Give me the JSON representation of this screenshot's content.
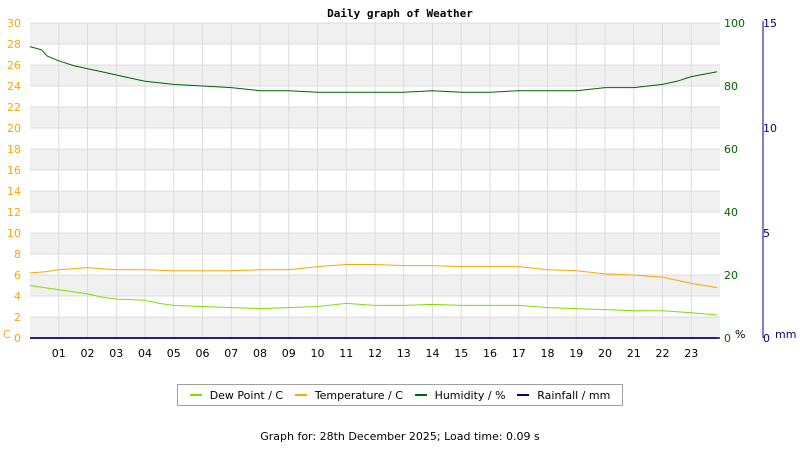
{
  "chart_data": {
    "type": "line",
    "title": "Daily graph of Weather",
    "x_tick_labels": [
      "01",
      "02",
      "03",
      "04",
      "05",
      "06",
      "07",
      "08",
      "09",
      "10",
      "11",
      "12",
      "13",
      "14",
      "15",
      "16",
      "17",
      "18",
      "19",
      "20",
      "21",
      "22",
      "23"
    ],
    "xlim": [
      0,
      24
    ],
    "axes": {
      "left": {
        "unit_label": "C",
        "ylim": [
          0,
          30
        ],
        "ticks": [
          0,
          2,
          4,
          6,
          8,
          10,
          12,
          14,
          16,
          18,
          20,
          22,
          24,
          26,
          28,
          30
        ],
        "color": "#ffa500"
      },
      "right1": {
        "unit_label": "%",
        "ylim": [
          0,
          100
        ],
        "ticks": [
          0,
          20,
          40,
          60,
          80,
          100
        ],
        "color": "#006400"
      },
      "right2": {
        "unit_label": "mm",
        "ylim": [
          0,
          15
        ],
        "ticks": [
          0,
          5,
          10,
          15
        ],
        "color": "#00008b"
      }
    },
    "grid": true,
    "legend_position": "bottom",
    "series": [
      {
        "name": "Dew Point / C",
        "axis": "left",
        "color": "#7fe000",
        "x": [
          0,
          0.5,
          1,
          1.5,
          2,
          2.5,
          3,
          4,
          4.5,
          5,
          6,
          7,
          8,
          9,
          10,
          11,
          12,
          13,
          14,
          15,
          16,
          17,
          18,
          19,
          20,
          21,
          22,
          23,
          23.9
        ],
        "y": [
          5.0,
          4.8,
          4.6,
          4.4,
          4.2,
          3.9,
          3.7,
          3.6,
          3.3,
          3.1,
          3.0,
          2.9,
          2.8,
          2.9,
          3.0,
          3.3,
          3.1,
          3.1,
          3.2,
          3.1,
          3.1,
          3.1,
          2.9,
          2.8,
          2.7,
          2.6,
          2.6,
          2.4,
          2.2
        ]
      },
      {
        "name": "Temperature / C",
        "axis": "left",
        "color": "#ffa500",
        "x": [
          0,
          0.5,
          1,
          2,
          2.5,
          3,
          4,
          5,
          6,
          7,
          8,
          9,
          10,
          11,
          12,
          13,
          14,
          15,
          16,
          17,
          18,
          19,
          20,
          21,
          22,
          23,
          23.9
        ],
        "y": [
          6.2,
          6.3,
          6.5,
          6.7,
          6.6,
          6.5,
          6.5,
          6.4,
          6.4,
          6.4,
          6.5,
          6.5,
          6.8,
          7.0,
          7.0,
          6.9,
          6.9,
          6.8,
          6.8,
          6.8,
          6.5,
          6.4,
          6.1,
          6.0,
          5.8,
          5.2,
          4.8
        ]
      },
      {
        "name": "Humidity / %",
        "axis": "right1",
        "color": "#006400",
        "x": [
          0,
          0.4,
          0.6,
          1,
          1.5,
          2,
          2.5,
          3,
          4,
          5,
          6,
          7,
          8,
          9,
          10,
          11,
          12,
          13,
          14,
          15,
          16,
          17,
          18,
          19,
          20,
          21,
          22,
          22.5,
          23,
          23.9
        ],
        "y": [
          92.5,
          91.5,
          89.5,
          88,
          86.5,
          85.5,
          84.5,
          83.5,
          81.5,
          80.5,
          80,
          79.5,
          78.5,
          78.5,
          78,
          78,
          78,
          78,
          78.5,
          78,
          78,
          78.5,
          78.5,
          78.5,
          79.5,
          79.5,
          80.5,
          81.5,
          83,
          84.5
        ]
      },
      {
        "name": "Rainfall / mm",
        "axis": "right2",
        "color": "#00008b",
        "x": [
          0,
          23.9
        ],
        "y": [
          0,
          0
        ]
      }
    ]
  },
  "legend": {
    "items": [
      {
        "label": "Dew Point / C",
        "color": "#7fe000"
      },
      {
        "label": "Temperature / C",
        "color": "#ffa500"
      },
      {
        "label": "Humidity / %",
        "color": "#006400"
      },
      {
        "label": "Rainfall / mm",
        "color": "#00008b"
      }
    ]
  },
  "footer": {
    "text": "Graph for: 28th December 2025; Load time: 0.09 s"
  }
}
